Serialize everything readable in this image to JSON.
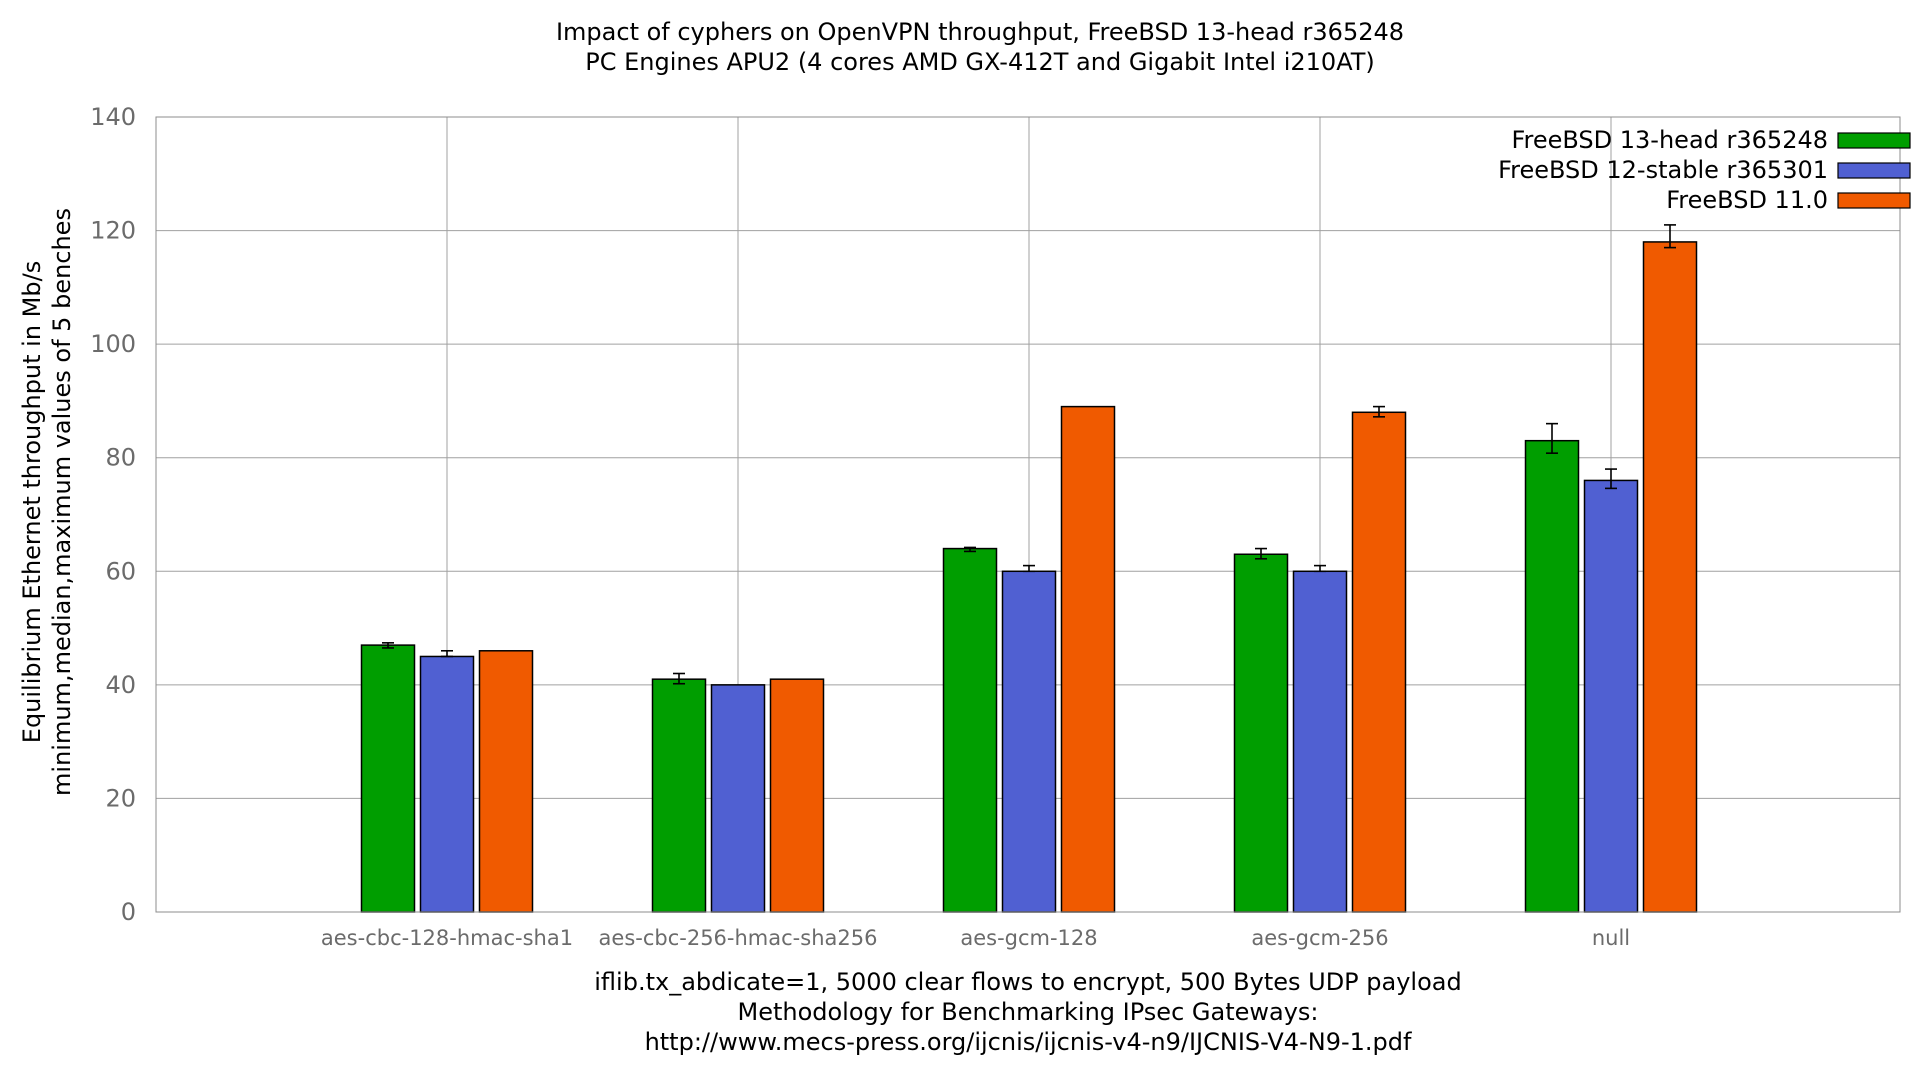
{
  "chart_data": {
    "type": "bar",
    "title": [
      "Impact of cyphers on OpenVPN throughput, FreeBSD 13-head r365248",
      "PC Engines APU2 (4 cores AMD GX-412T and Gigabit Intel i210AT)"
    ],
    "ylabel": [
      "Equilibrium Ethernet throughput in Mb/s",
      "minimum,median,maximum values of 5 benches"
    ],
    "xlabel": [
      "iflib.tx_abdicate=1, 5000 clear flows to encrypt, 500 Bytes UDP payload",
      "Methodology for Benchmarking IPsec Gateways:",
      "http://www.mecs-press.org/ijcnis/ijcnis-v4-n9/IJCNIS-V4-N9-1.pdf"
    ],
    "ylim": [
      0,
      140
    ],
    "yticks": [
      0,
      20,
      40,
      60,
      80,
      100,
      120,
      140
    ],
    "grid": true,
    "legend_position": "top-right",
    "categories": [
      "aes-cbc-128-hmac-sha1",
      "aes-cbc-256-hmac-sha256",
      "aes-gcm-128",
      "aes-gcm-256",
      "null"
    ],
    "series": [
      {
        "name": "FreeBSD 13-head r365248",
        "color": "#009e00",
        "values": [
          47,
          41,
          64,
          63,
          83
        ],
        "min": [
          46.5,
          40.2,
          63.5,
          62.2,
          80.8
        ],
        "max": [
          47.4,
          42,
          64.2,
          64,
          86
        ]
      },
      {
        "name": "FreeBSD 12-stable r365301",
        "color": "#5060d2",
        "values": [
          45,
          40,
          60,
          60,
          76
        ],
        "min": [
          45,
          40,
          60,
          60,
          74.6
        ],
        "max": [
          46,
          40,
          61,
          61,
          78
        ]
      },
      {
        "name": "FreeBSD 11.0",
        "color": "#f05a00",
        "values": [
          46,
          41,
          89,
          88,
          118
        ],
        "min": [
          46,
          41,
          89,
          87.2,
          117
        ],
        "max": [
          46,
          41,
          89,
          89,
          121
        ]
      }
    ]
  }
}
